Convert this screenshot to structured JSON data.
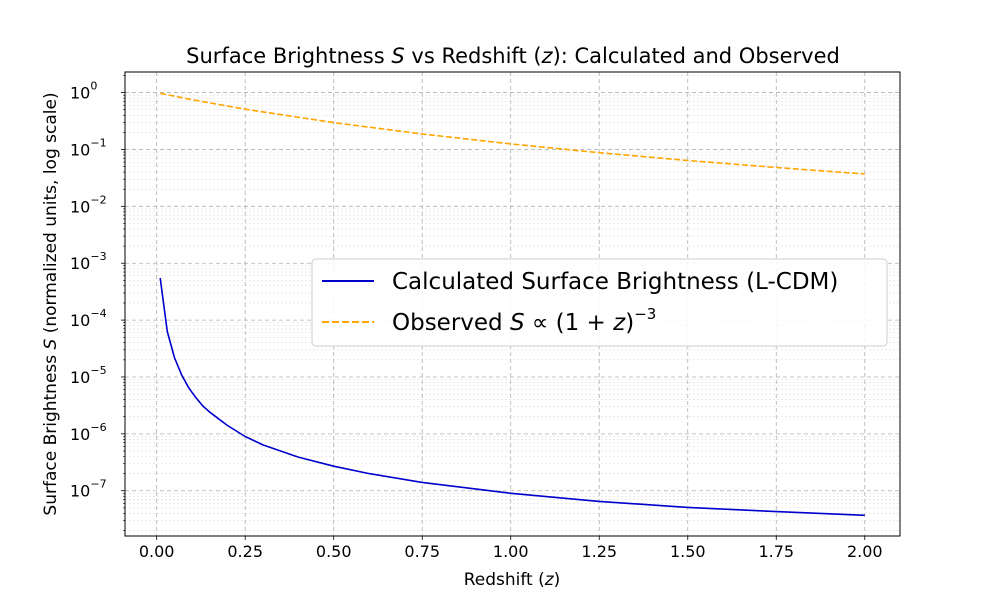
{
  "chart_data": {
    "type": "line",
    "title": {
      "pre": "Surface Brightness ",
      "sym": "S",
      "mid": " vs Redshift (",
      "var": "z",
      "post": "): Calculated and Observed"
    },
    "xlabel": {
      "pre": "Redshift (",
      "var": "z",
      "post": ")"
    },
    "ylabel": {
      "pre": "Surface Brightness ",
      "sym": "S",
      "post": " (normalized units, log scale)"
    },
    "x_ticks": [
      "0.00",
      "0.25",
      "0.50",
      "0.75",
      "1.00",
      "1.25",
      "1.50",
      "1.75",
      "2.00"
    ],
    "x_tick_values": [
      0,
      0.25,
      0.5,
      0.75,
      1.0,
      1.25,
      1.5,
      1.75,
      2.0
    ],
    "y_ticks": [
      {
        "base": "10",
        "exp": "0"
      },
      {
        "base": "10",
        "exp": "−1"
      },
      {
        "base": "10",
        "exp": "−2"
      },
      {
        "base": "10",
        "exp": "−3"
      },
      {
        "base": "10",
        "exp": "−4"
      },
      {
        "base": "10",
        "exp": "−5"
      },
      {
        "base": "10",
        "exp": "−6"
      },
      {
        "base": "10",
        "exp": "−7"
      }
    ],
    "y_tick_exponents": [
      0,
      -1,
      -2,
      -3,
      -4,
      -5,
      -6,
      -7
    ],
    "xlim": [
      -0.0895,
      2.0995
    ],
    "ylim": [
      1.6e-08,
      2.3
    ],
    "y_scale": "log",
    "grid": "major-and-minor",
    "legend_position": "center-right",
    "series": [
      {
        "name": "Calculated Surface Brightness (L-CDM)",
        "color": "#0000cc",
        "style": "solid",
        "x": [
          0.01,
          0.03,
          0.05,
          0.07,
          0.09,
          0.11,
          0.13,
          0.15,
          0.2,
          0.25,
          0.3,
          0.4,
          0.5,
          0.6,
          0.75,
          1.0,
          1.25,
          1.5,
          1.75,
          2.0
        ],
        "y": [
          0.00055,
          6.3e-05,
          2.2e-05,
          1.1e-05,
          6.5e-06,
          4.4e-06,
          3.1e-06,
          2.4e-06,
          1.4e-06,
          9e-07,
          6.4e-07,
          3.9e-07,
          2.7e-07,
          2e-07,
          1.4e-07,
          9e-08,
          6.5e-08,
          5.1e-08,
          4.3e-08,
          3.7e-08
        ]
      },
      {
        "name": {
          "pre": "Observed ",
          "sym": "S",
          "mid": " ∝ (1 + ",
          "var": "z",
          "post": ")",
          "exp": "−3"
        },
        "color": "#ffa500",
        "style": "dashed",
        "x": [
          0.01,
          0.1,
          0.25,
          0.5,
          0.75,
          1.0,
          1.25,
          1.5,
          1.75,
          2.0
        ],
        "y": [
          0.97,
          0.75,
          0.51,
          0.296,
          0.187,
          0.125,
          0.0878,
          0.064,
          0.0481,
          0.037
        ]
      }
    ]
  }
}
